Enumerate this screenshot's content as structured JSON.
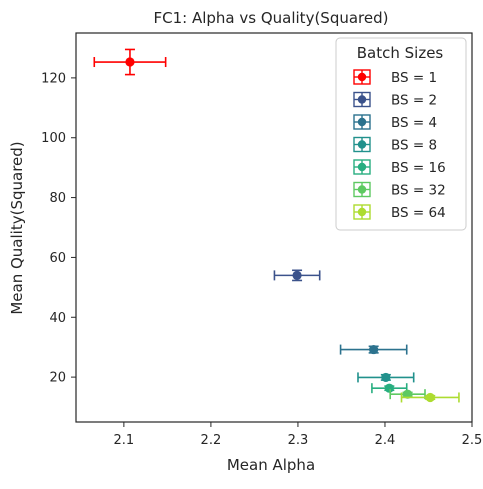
{
  "chart_data": {
    "type": "scatter",
    "title": "FC1: Alpha vs Quality(Squared)",
    "xlabel": "Mean Alpha",
    "ylabel": "Mean Quality(Squared)",
    "xlim": [
      2.045,
      2.5
    ],
    "ylim": [
      5,
      135
    ],
    "xticks": [
      "2.1",
      "2.2",
      "2.3",
      "2.4",
      "2.5"
    ],
    "yticks": [
      "20",
      "40",
      "60",
      "80",
      "100",
      "120"
    ],
    "grid": false,
    "legend": {
      "title": "Batch Sizes",
      "placement": "top-right"
    },
    "error_bars": "x and y",
    "series": [
      {
        "name": "BS = 1",
        "color": "#ff0000",
        "x": 2.107,
        "y": 125.3,
        "xerr": 0.041,
        "yerr": 4.2
      },
      {
        "name": "BS = 2",
        "color": "#3b528b",
        "x": 2.299,
        "y": 54.0,
        "xerr": 0.026,
        "yerr": 1.7
      },
      {
        "name": "BS = 4",
        "color": "#2c728e",
        "x": 2.387,
        "y": 29.2,
        "xerr": 0.038,
        "yerr": 1.1
      },
      {
        "name": "BS = 8",
        "color": "#21918c",
        "x": 2.401,
        "y": 19.9,
        "xerr": 0.032,
        "yerr": 0.9
      },
      {
        "name": "BS = 16",
        "color": "#28ae80",
        "x": 2.405,
        "y": 16.3,
        "xerr": 0.02,
        "yerr": 0.7
      },
      {
        "name": "BS = 32",
        "color": "#5ec962",
        "x": 2.426,
        "y": 14.3,
        "xerr": 0.02,
        "yerr": 0.6
      },
      {
        "name": "BS = 64",
        "color": "#addc30",
        "x": 2.452,
        "y": 13.2,
        "xerr": 0.033,
        "yerr": 0.6
      }
    ]
  }
}
